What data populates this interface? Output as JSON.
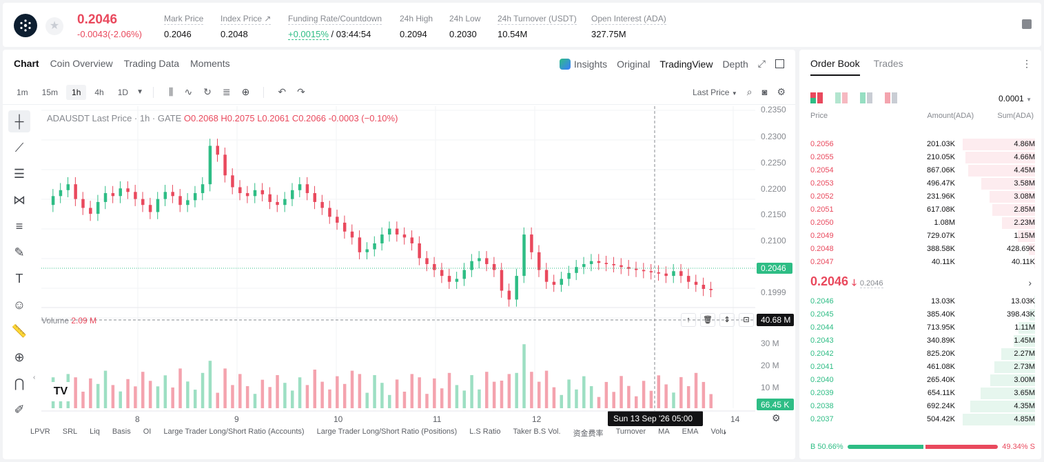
{
  "ticker": {
    "price": "0.2046",
    "change": "-0.0043(-2.06%)",
    "stats": [
      {
        "label": "Mark Price",
        "value": "0.2046"
      },
      {
        "label": "Index Price ↗",
        "value": "0.2048"
      },
      {
        "label": "Funding Rate/Countdown",
        "value": "+0.0015%",
        "value2": "/ 03:44:54"
      },
      {
        "label": "24h High",
        "value": "0.2094"
      },
      {
        "label": "24h Low",
        "value": "0.2030"
      },
      {
        "label": "24h Turnover (USDT)",
        "value": "10.54M"
      },
      {
        "label": "Open Interest (ADA)",
        "value": "327.75M"
      }
    ]
  },
  "chart_tabs": [
    "Chart",
    "Coin Overview",
    "Trading Data",
    "Moments"
  ],
  "chart_tabs_right": [
    "Insights",
    "Original",
    "TradingView",
    "Depth"
  ],
  "intervals": [
    "1m",
    "15m",
    "1h",
    "4h",
    "1D"
  ],
  "toolbar": {
    "price_type": "Last Price"
  },
  "legend": {
    "symbol": "ADAUSDT Last Price · 1h · GATE",
    "o": "O0.2068",
    "h": "H0.2075",
    "l": "L0.2061",
    "c": "C0.2066",
    "chg": "-0.0003 (−0.10%)"
  },
  "volume_legend": {
    "label": "Volume",
    "value": "2.09 M"
  },
  "price_ticks": [
    "0.2350",
    "0.2300",
    "0.2250",
    "0.2200",
    "0.2150",
    "0.2100",
    "0.2046",
    "0.1999"
  ],
  "volume_ticks": [
    "40.68 M",
    "30 M",
    "20 M",
    "10 M",
    "66.45 K"
  ],
  "x_ticks": [
    "8",
    "9",
    "10",
    "11",
    "12",
    "14"
  ],
  "crosshair_label": "Sun 13 Sep '26   05:00",
  "bottom_items": [
    "LPVR",
    "SRL",
    "Liq",
    "Basis",
    "OI",
    "Large Trader Long/Short Ratio (Accounts)",
    "Large Trader Long/Short Ratio (Positions)",
    "L.S Ratio",
    "Taker B.S Vol.",
    "资金费率",
    "Turnover",
    "MA",
    "EMA",
    "Volu"
  ],
  "orderbook": {
    "tabs": [
      "Order Book",
      "Trades"
    ],
    "precision": "0.0001",
    "headers": [
      "Price",
      "Amount(ADA)",
      "Sum(ADA)"
    ],
    "asks": [
      {
        "p": "0.2056",
        "a": "201.03K",
        "s": "4.86M",
        "f": 1.0
      },
      {
        "p": "0.2055",
        "a": "210.05K",
        "s": "4.66M",
        "f": 0.96
      },
      {
        "p": "0.2054",
        "a": "867.06K",
        "s": "4.45M",
        "f": 0.92
      },
      {
        "p": "0.2053",
        "a": "496.47K",
        "s": "3.58M",
        "f": 0.74
      },
      {
        "p": "0.2052",
        "a": "231.96K",
        "s": "3.08M",
        "f": 0.63
      },
      {
        "p": "0.2051",
        "a": "617.08K",
        "s": "2.85M",
        "f": 0.59
      },
      {
        "p": "0.2050",
        "a": "1.08M",
        "s": "2.23M",
        "f": 0.46
      },
      {
        "p": "0.2049",
        "a": "729.07K",
        "s": "1.15M",
        "f": 0.24
      },
      {
        "p": "0.2048",
        "a": "388.58K",
        "s": "428.69K",
        "f": 0.09
      },
      {
        "p": "0.2047",
        "a": "40.11K",
        "s": "40.11K",
        "f": 0.01
      }
    ],
    "mid_price": "0.2046",
    "mid_mark": "0.2046",
    "bids": [
      {
        "p": "0.2046",
        "a": "13.03K",
        "s": "13.03K",
        "f": 0.01
      },
      {
        "p": "0.2045",
        "a": "385.40K",
        "s": "398.43K",
        "f": 0.08
      },
      {
        "p": "0.2044",
        "a": "713.95K",
        "s": "1.11M",
        "f": 0.23
      },
      {
        "p": "0.2043",
        "a": "340.89K",
        "s": "1.45M",
        "f": 0.3
      },
      {
        "p": "0.2042",
        "a": "825.20K",
        "s": "2.27M",
        "f": 0.47
      },
      {
        "p": "0.2041",
        "a": "461.08K",
        "s": "2.73M",
        "f": 0.56
      },
      {
        "p": "0.2040",
        "a": "265.40K",
        "s": "3.00M",
        "f": 0.62
      },
      {
        "p": "0.2039",
        "a": "654.11K",
        "s": "3.65M",
        "f": 0.75
      },
      {
        "p": "0.2038",
        "a": "692.24K",
        "s": "4.35M",
        "f": 0.9
      },
      {
        "p": "0.2037",
        "a": "504.42K",
        "s": "4.85M",
        "f": 1.0
      }
    ],
    "buy_ratio": "B 50.66%",
    "sell_ratio": "49.34% S",
    "buy_frac": 0.5066
  },
  "colors": {
    "up": "#2ebd85",
    "down": "#e9495d",
    "up_bg": "#e6f6ee",
    "down_bg": "#fdecef"
  }
}
